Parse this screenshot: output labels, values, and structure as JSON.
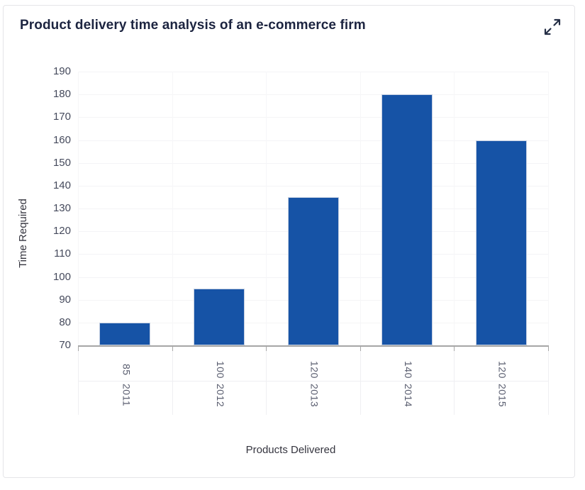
{
  "header": {
    "title": "Product delivery time analysis of an e-commerce firm",
    "expand_icon": "expand-diagonal-arrows"
  },
  "chart_data": {
    "type": "bar",
    "title": "Product delivery time analysis of an e-commerce firm",
    "xlabel": "Products Delivered",
    "ylabel": "Time Required",
    "ylim": [
      70,
      190
    ],
    "ytick_step": 10,
    "grid": true,
    "legend_position": "none",
    "categories": [
      {
        "products_delivered": "85",
        "year": "2011"
      },
      {
        "products_delivered": "100",
        "year": "2012"
      },
      {
        "products_delivered": "120",
        "year": "2013"
      },
      {
        "products_delivered": "140",
        "year": "2014"
      },
      {
        "products_delivered": "120",
        "year": "2015"
      }
    ],
    "series": [
      {
        "name": "Time Required",
        "values": [
          80,
          95,
          135,
          180,
          160
        ]
      }
    ],
    "colors": {
      "bar_fill": "#1653a6",
      "bar_border": "#c3cee1",
      "axis_line": "#a6a6a6",
      "grid_line": "#f4f4f6",
      "y_tick_label": "#454a5c",
      "x_tick_label": "#585c6e",
      "title": "#1c2440"
    }
  }
}
